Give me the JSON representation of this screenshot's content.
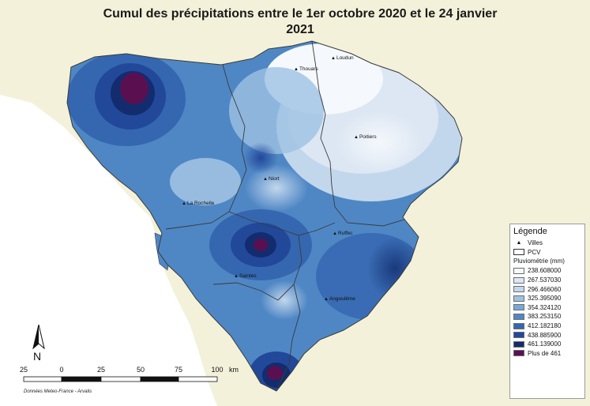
{
  "title_line1": "Cumul des précipitations entre le 1er octobre 2020 et le 24 janvier",
  "title_line2": "2021",
  "legend": {
    "title": "Légende",
    "cities_label": "Villes",
    "boundary_label": "PCV",
    "rain_label": "Pluviométrie (mm)",
    "classes": [
      {
        "label": "238.608000",
        "color": "#f5f8fc"
      },
      {
        "label": "267.537030",
        "color": "#dce7f3"
      },
      {
        "label": "296.466060",
        "color": "#c2d7ec"
      },
      {
        "label": "325.395090",
        "color": "#9ec2e2"
      },
      {
        "label": "354.324120",
        "color": "#78a9d6"
      },
      {
        "label": "383.253150",
        "color": "#4f87c5"
      },
      {
        "label": "412.182180",
        "color": "#3567b0"
      },
      {
        "label": "438.885900",
        "color": "#22489a"
      },
      {
        "label": "461.139000",
        "color": "#132c6e"
      },
      {
        "label": "Plus de 461",
        "color": "#5a1050"
      }
    ]
  },
  "cities": {
    "thouars": "Thouars",
    "loudun": "Loudun",
    "poitiers": "Poitiers",
    "niort": "Niort",
    "la_rochelle": "La Rochelle",
    "ruffec": "Ruffec",
    "saintes": "Saintes",
    "angouleme": "Angoulême"
  },
  "scale": {
    "ticks": [
      "25",
      "0",
      "25",
      "50",
      "75",
      "100"
    ],
    "unit": "km"
  },
  "north_label": "N",
  "credit": "Données Meteo-France - Arvalis",
  "colors": {
    "land": "#f3f1d9",
    "sea": "#ffffff",
    "boundary": "#3a3a3a"
  }
}
